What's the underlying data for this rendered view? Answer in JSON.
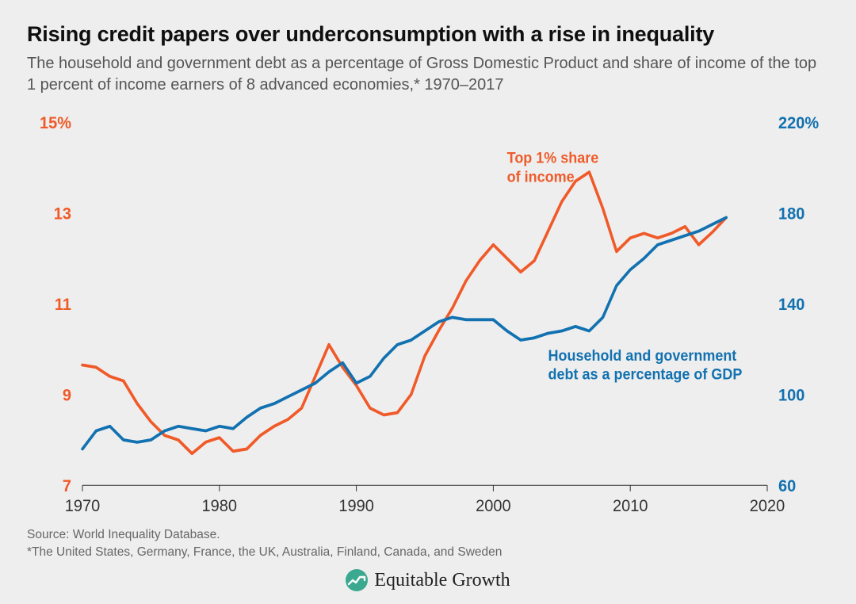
{
  "title": "Rising credit papers over underconsumption with a rise in inequality",
  "subtitle": "The household and government debt as a percentage of Gross Domestic Product and share of income of the top 1 percent of income earners of 8 advanced economies,* 1970–2017",
  "source_line": "Source: World Inequality Database.",
  "footnote_line": "*The United States, Germany, France, the UK, Australia, Finland, Canada, and Sweden",
  "brand_name": "Equitable Growth",
  "chart": {
    "type": "dual-axis-line",
    "background_color": "#eeeeee",
    "plot_border_color": "#333333",
    "x": {
      "min": 1970,
      "max": 2020,
      "ticks": [
        1970,
        1980,
        1990,
        2000,
        2010,
        2020
      ],
      "tick_fontsize": 20,
      "tick_color": "#333333"
    },
    "y_left": {
      "min": 7,
      "max": 15,
      "ticks": [
        7,
        9,
        11,
        13,
        15
      ],
      "tick_labels": [
        "7",
        "9",
        "11",
        "13",
        "15%"
      ],
      "tick_fontsize": 20,
      "color": "#f05a28"
    },
    "y_right": {
      "min": 60,
      "max": 220,
      "ticks": [
        60,
        100,
        140,
        180,
        220
      ],
      "tick_labels": [
        "60",
        "100",
        "140",
        "180",
        "220%"
      ],
      "tick_fontsize": 20,
      "color": "#1271b0"
    },
    "series": [
      {
        "name": "top1_share",
        "axis": "left",
        "color": "#f05a28",
        "line_width": 3.5,
        "label_lines": [
          "Top 1% share",
          "of income"
        ],
        "label_pos_year": 2001,
        "label_pos_left_val": 14.1,
        "data": [
          {
            "x": 1970,
            "y": 9.65
          },
          {
            "x": 1971,
            "y": 9.6
          },
          {
            "x": 1972,
            "y": 9.4
          },
          {
            "x": 1973,
            "y": 9.3
          },
          {
            "x": 1974,
            "y": 8.8
          },
          {
            "x": 1975,
            "y": 8.4
          },
          {
            "x": 1976,
            "y": 8.1
          },
          {
            "x": 1977,
            "y": 8.0
          },
          {
            "x": 1978,
            "y": 7.7
          },
          {
            "x": 1979,
            "y": 7.95
          },
          {
            "x": 1980,
            "y": 8.05
          },
          {
            "x": 1981,
            "y": 7.75
          },
          {
            "x": 1982,
            "y": 7.8
          },
          {
            "x": 1983,
            "y": 8.1
          },
          {
            "x": 1984,
            "y": 8.3
          },
          {
            "x": 1985,
            "y": 8.45
          },
          {
            "x": 1986,
            "y": 8.7
          },
          {
            "x": 1987,
            "y": 9.4
          },
          {
            "x": 1988,
            "y": 10.1
          },
          {
            "x": 1989,
            "y": 9.6
          },
          {
            "x": 1990,
            "y": 9.2
          },
          {
            "x": 1991,
            "y": 8.7
          },
          {
            "x": 1992,
            "y": 8.55
          },
          {
            "x": 1993,
            "y": 8.6
          },
          {
            "x": 1994,
            "y": 9.0
          },
          {
            "x": 1995,
            "y": 9.85
          },
          {
            "x": 1996,
            "y": 10.4
          },
          {
            "x": 1997,
            "y": 10.9
          },
          {
            "x": 1998,
            "y": 11.5
          },
          {
            "x": 1999,
            "y": 11.95
          },
          {
            "x": 2000,
            "y": 12.3
          },
          {
            "x": 2001,
            "y": 12.0
          },
          {
            "x": 2002,
            "y": 11.7
          },
          {
            "x": 2003,
            "y": 11.95
          },
          {
            "x": 2004,
            "y": 12.6
          },
          {
            "x": 2005,
            "y": 13.25
          },
          {
            "x": 2006,
            "y": 13.7
          },
          {
            "x": 2007,
            "y": 13.9
          },
          {
            "x": 2008,
            "y": 13.1
          },
          {
            "x": 2009,
            "y": 12.15
          },
          {
            "x": 2010,
            "y": 12.45
          },
          {
            "x": 2011,
            "y": 12.55
          },
          {
            "x": 2012,
            "y": 12.45
          },
          {
            "x": 2013,
            "y": 12.55
          },
          {
            "x": 2014,
            "y": 12.7
          },
          {
            "x": 2015,
            "y": 12.3
          },
          {
            "x": 2016,
            "y": 12.58
          },
          {
            "x": 2017,
            "y": 12.9
          }
        ]
      },
      {
        "name": "debt_pct_gdp",
        "axis": "right",
        "color": "#1271b0",
        "line_width": 3.5,
        "label_lines": [
          "Household and government",
          "debt as a percentage of GDP"
        ],
        "label_pos_year": 2004,
        "label_pos_right_val": 115,
        "data": [
          {
            "x": 1970,
            "y": 76
          },
          {
            "x": 1971,
            "y": 84
          },
          {
            "x": 1972,
            "y": 86
          },
          {
            "x": 1973,
            "y": 80
          },
          {
            "x": 1974,
            "y": 79
          },
          {
            "x": 1975,
            "y": 80
          },
          {
            "x": 1976,
            "y": 84
          },
          {
            "x": 1977,
            "y": 86
          },
          {
            "x": 1978,
            "y": 85
          },
          {
            "x": 1979,
            "y": 84
          },
          {
            "x": 1980,
            "y": 86
          },
          {
            "x": 1981,
            "y": 85
          },
          {
            "x": 1982,
            "y": 90
          },
          {
            "x": 1983,
            "y": 94
          },
          {
            "x": 1984,
            "y": 96
          },
          {
            "x": 1985,
            "y": 99
          },
          {
            "x": 1986,
            "y": 102
          },
          {
            "x": 1987,
            "y": 105
          },
          {
            "x": 1988,
            "y": 110
          },
          {
            "x": 1989,
            "y": 114
          },
          {
            "x": 1990,
            "y": 105
          },
          {
            "x": 1991,
            "y": 108
          },
          {
            "x": 1992,
            "y": 116
          },
          {
            "x": 1993,
            "y": 122
          },
          {
            "x": 1994,
            "y": 124
          },
          {
            "x": 1995,
            "y": 128
          },
          {
            "x": 1996,
            "y": 132
          },
          {
            "x": 1997,
            "y": 134
          },
          {
            "x": 1998,
            "y": 133
          },
          {
            "x": 1999,
            "y": 133
          },
          {
            "x": 2000,
            "y": 133
          },
          {
            "x": 2001,
            "y": 128
          },
          {
            "x": 2002,
            "y": 124
          },
          {
            "x": 2003,
            "y": 125
          },
          {
            "x": 2004,
            "y": 127
          },
          {
            "x": 2005,
            "y": 128
          },
          {
            "x": 2006,
            "y": 130
          },
          {
            "x": 2007,
            "y": 128
          },
          {
            "x": 2008,
            "y": 134
          },
          {
            "x": 2009,
            "y": 148
          },
          {
            "x": 2010,
            "y": 155
          },
          {
            "x": 2011,
            "y": 160
          },
          {
            "x": 2012,
            "y": 166
          },
          {
            "x": 2013,
            "y": 168
          },
          {
            "x": 2014,
            "y": 170
          },
          {
            "x": 2015,
            "y": 172
          },
          {
            "x": 2016,
            "y": 175
          },
          {
            "x": 2017,
            "y": 178
          }
        ]
      }
    ]
  },
  "brand": {
    "icon_bg": "#3aa98f",
    "icon_line": "#ffffff"
  }
}
